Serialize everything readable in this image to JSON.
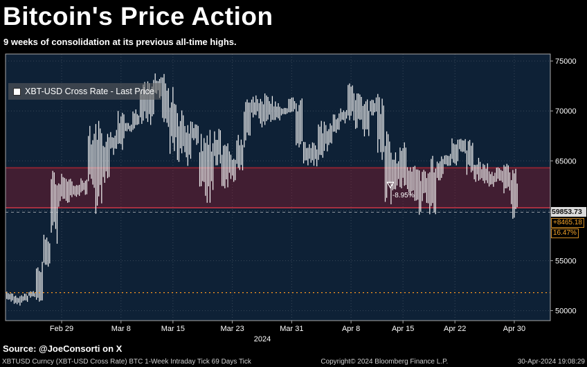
{
  "title": "Bitcoin's Price Action",
  "subtitle": "9 weeks of consolidation at its previous all-time highs.",
  "legend": {
    "label": "XBT-USD Cross Rate - Last Price",
    "marker_color": "#ffffff"
  },
  "price_axis": {
    "last_price_label": "59853.73",
    "change_abs": "+8465.18",
    "change_pct": "16.47%"
  },
  "source_line": "Source: @JoeConsorti on X",
  "footer": {
    "left": "XBTUSD Curncy (XBT-USD Cross Rate) BTC 1-Week Intraday Tick 69 Days  Tick",
    "copyright": "Copyright© 2024 Bloomberg Finance L.P.",
    "datetime": "30-Apr-2024 19:08:29"
  },
  "colors": {
    "background": "#000000",
    "plot_bg": "#0e2136",
    "bars": "#f2f2f2",
    "band_fill": "rgba(150,25,45,0.38)",
    "band_top_line": "#8a2332",
    "band_bottom_line": "#c33545",
    "grid": "rgba(210,210,210,0.22)",
    "frame": "#a8a8a8",
    "axis_text": "#ffffff",
    "last_price_line": "#e0e0e0",
    "support_line": "#ff9a1f",
    "accent_amber": "#f7a52a",
    "price_box_bg": "#dcdcdc"
  },
  "chart_data": {
    "type": "candlestick",
    "title": "XBT-USD Cross Rate - Last Price",
    "ylim": [
      49000,
      75700
    ],
    "y_ticks": [
      50000,
      55000,
      60000,
      65000,
      70000,
      75000
    ],
    "x_ticks": [
      [
        "Feb 29",
        7
      ],
      [
        "Mar 8",
        15
      ],
      [
        "Mar 15",
        22
      ],
      [
        "Mar 23",
        30
      ],
      [
        "Mar 31",
        38
      ],
      [
        "Apr 8",
        46
      ],
      [
        "Apr 15",
        53
      ],
      [
        "Apr 22",
        60
      ],
      [
        "Apr 30",
        68
      ]
    ],
    "year": "2024",
    "last_price": 59853.73,
    "change_abs": 8465.18,
    "change_pct": 16.47,
    "consolidation_band": {
      "top": 64300,
      "bottom": 60300
    },
    "support_dotted_level": 51800,
    "drawdown_annotation": {
      "text": "-8.95%",
      "day_index": 51,
      "price": 62300
    },
    "days_format": [
      "date",
      "low",
      "high"
    ],
    "days": [
      [
        "Feb 22",
        50900,
        51900
      ],
      [
        "Feb 23",
        50500,
        51500
      ],
      [
        "Feb 24",
        50800,
        51700
      ],
      [
        "Feb 25",
        51300,
        51950
      ],
      [
        "Feb 26",
        50900,
        54900
      ],
      [
        "Feb 27",
        54400,
        57600
      ],
      [
        "Feb 28",
        56700,
        64000
      ],
      [
        "Feb 29",
        60400,
        63700
      ],
      [
        "Mar 1",
        60800,
        63200
      ],
      [
        "Mar 2",
        61400,
        62600
      ],
      [
        "Mar 3",
        61600,
        63250
      ],
      [
        "Mar 4",
        62300,
        68500
      ],
      [
        "Mar 5",
        59700,
        69000
      ],
      [
        "Mar 6",
        62800,
        67700
      ],
      [
        "Mar 7",
        65600,
        68100
      ],
      [
        "Mar 8",
        66100,
        70000
      ],
      [
        "Mar 9",
        67900,
        68800
      ],
      [
        "Mar 10",
        68100,
        70150
      ],
      [
        "Mar 11",
        68700,
        72900
      ],
      [
        "Mar 12",
        68600,
        73100
      ],
      [
        "Mar 13",
        71300,
        73750
      ],
      [
        "Mar 14",
        68400,
        73700
      ],
      [
        "Mar 15",
        65700,
        72400
      ],
      [
        "Mar 16",
        64900,
        70050
      ],
      [
        "Mar 17",
        64500,
        68950
      ],
      [
        "Mar 18",
        66600,
        68900
      ],
      [
        "Mar 19",
        61500,
        67700
      ],
      [
        "Mar 20",
        60800,
        68100
      ],
      [
        "Mar 21",
        64550,
        68200
      ],
      [
        "Mar 22",
        62250,
        66750
      ],
      [
        "Mar 23",
        62900,
        65950
      ],
      [
        "Mar 24",
        64050,
        67600
      ],
      [
        "Mar 25",
        66350,
        71150
      ],
      [
        "Mar 26",
        69350,
        71550
      ],
      [
        "Mar 27",
        68350,
        71750
      ],
      [
        "Mar 28",
        68900,
        71550
      ],
      [
        "Mar 29",
        69050,
        70950
      ],
      [
        "Mar 30",
        69550,
        70300
      ],
      [
        "Mar 31",
        69850,
        71350
      ],
      [
        "Apr 1",
        66350,
        71250
      ],
      [
        "Apr 2",
        64550,
        66900
      ],
      [
        "Apr 3",
        64450,
        66850
      ],
      [
        "Apr 4",
        65100,
        69000
      ],
      [
        "Apr 5",
        65950,
        68750
      ],
      [
        "Apr 6",
        67800,
        69750
      ],
      [
        "Apr 7",
        68750,
        70250
      ],
      [
        "Apr 8",
        69050,
        72750
      ],
      [
        "Apr 9",
        68200,
        71750
      ],
      [
        "Apr 10",
        67450,
        71150
      ],
      [
        "Apr 11",
        69550,
        71350
      ],
      [
        "Apr 12",
        65100,
        71700
      ],
      [
        "Apr 13",
        60650,
        67950
      ],
      [
        "Apr 14",
        62050,
        65850
      ],
      [
        "Apr 15",
        62250,
        66850
      ],
      [
        "Apr 16",
        61550,
        64400
      ],
      [
        "Apr 17",
        59600,
        64500
      ],
      [
        "Apr 18",
        60750,
        64100
      ],
      [
        "Apr 19",
        59650,
        65500
      ],
      [
        "Apr 20",
        63050,
        65450
      ],
      [
        "Apr 21",
        64500,
        65700
      ],
      [
        "Apr 22",
        64550,
        67250
      ],
      [
        "Apr 23",
        65750,
        67200
      ],
      [
        "Apr 24",
        63600,
        67100
      ],
      [
        "Apr 25",
        62900,
        65300
      ],
      [
        "Apr 26",
        62750,
        64750
      ],
      [
        "Apr 27",
        62400,
        63950
      ],
      [
        "Apr 28",
        62850,
        64350
      ],
      [
        "Apr 29",
        61750,
        64700
      ],
      [
        "Apr 30",
        59200,
        64200
      ]
    ]
  }
}
